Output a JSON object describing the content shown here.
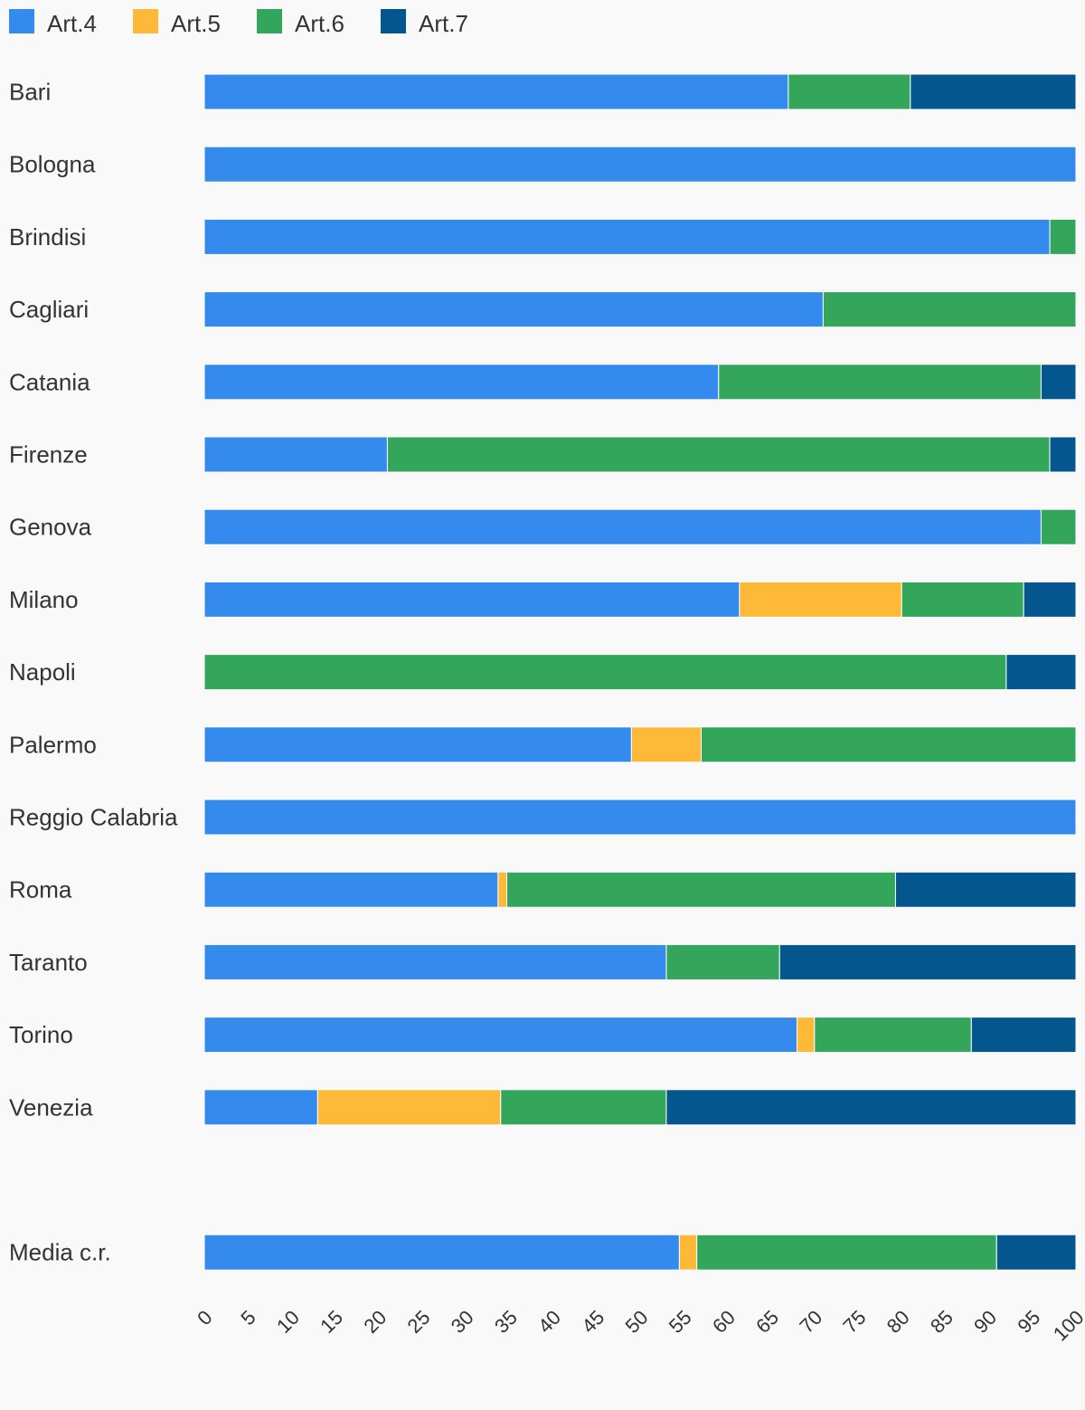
{
  "chart_data": {
    "type": "bar",
    "orientation": "horizontal",
    "stacked": true,
    "title": "",
    "xlabel": "",
    "ylabel": "",
    "xlim": [
      0,
      100
    ],
    "ticks": [
      0,
      5,
      10,
      15,
      20,
      25,
      30,
      35,
      40,
      45,
      50,
      55,
      60,
      65,
      70,
      75,
      80,
      85,
      90,
      95,
      100
    ],
    "grid": false,
    "legend_position": "top-left",
    "categories": [
      "Bari",
      "Bologna",
      "Brindisi",
      "Cagliari",
      "Catania",
      "Firenze",
      "Genova",
      "Milano",
      "Napoli",
      "Palermo",
      "Reggio Calabria",
      "Roma",
      "Taranto",
      "Torino",
      "Venezia",
      "Media c.r."
    ],
    "series": [
      {
        "name": "Art.4",
        "color": "#348bed",
        "values": [
          67,
          100,
          97,
          71,
          59,
          21,
          96,
          61.4,
          0,
          49,
          100,
          33.7,
          53,
          68,
          13,
          54.5
        ]
      },
      {
        "name": "Art.5",
        "color": "#feb938",
        "values": [
          0,
          0,
          0,
          0,
          0,
          0,
          0,
          18.6,
          0,
          8,
          0,
          1,
          0,
          2,
          21,
          2
        ]
      },
      {
        "name": "Art.6",
        "color": "#33a65c",
        "values": [
          14,
          0,
          3,
          29,
          37,
          76,
          4,
          14,
          92,
          43,
          0,
          44.6,
          13,
          18,
          19,
          34.4
        ]
      },
      {
        "name": "Art.7",
        "color": "#04568f",
        "values": [
          19,
          0,
          0,
          0,
          4,
          3,
          0,
          6,
          8,
          0,
          0,
          20.7,
          34,
          12,
          47,
          9.1
        ]
      }
    ]
  }
}
